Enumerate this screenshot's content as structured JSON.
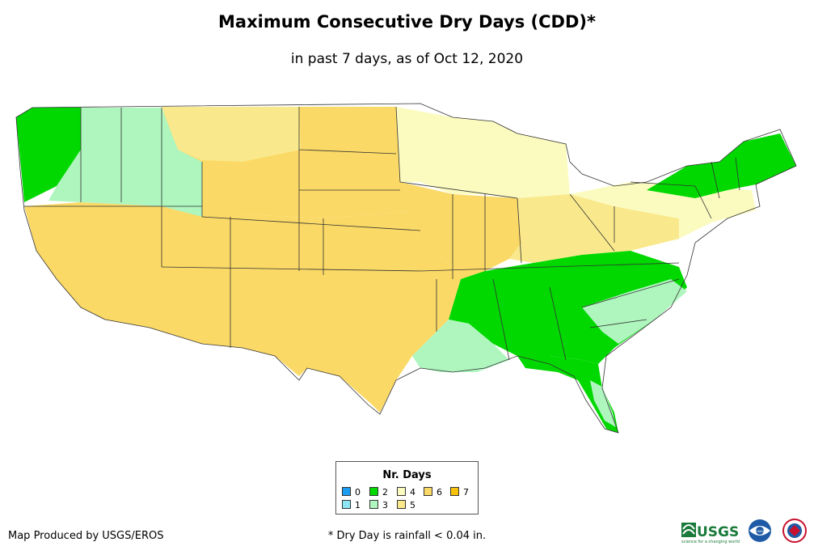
{
  "title": "Maximum Consecutive Dry Days (CDD)*",
  "subtitle": "in past 7 days, as of Oct 12, 2020",
  "legend": {
    "title": "Nr. Days",
    "items": [
      {
        "label": "0",
        "color": "#1a9cf0"
      },
      {
        "label": "1",
        "color": "#8de6f5"
      },
      {
        "label": "2",
        "color": "#00d800"
      },
      {
        "label": "3",
        "color": "#aef5be"
      },
      {
        "label": "4",
        "color": "#fbfbc0"
      },
      {
        "label": "5",
        "color": "#fae98c"
      },
      {
        "label": "6",
        "color": "#fbd966"
      },
      {
        "label": "7",
        "color": "#f8c20c"
      }
    ]
  },
  "credit": "Map Produced by USGS/EROS",
  "footnote": "* Dry Day is rainfall < 0.04 in.",
  "logos": {
    "usgs": "USGS",
    "usgs_tagline": "science for a changing world",
    "noaa": "noaa"
  }
}
